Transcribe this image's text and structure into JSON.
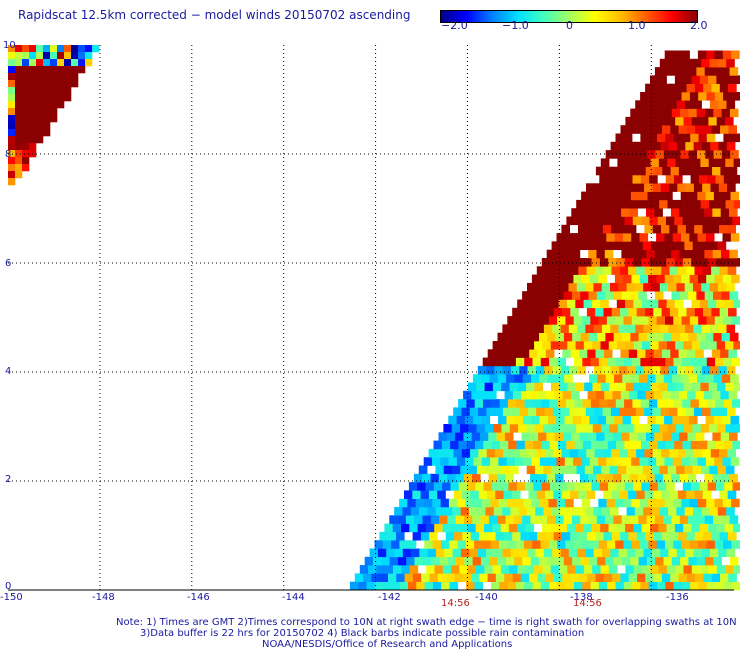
{
  "title": "Rapidscat 12.5km corrected − model winds 20150702 ascending",
  "colorbar": {
    "ticks": [
      {
        "label": "−2.0",
        "value": -2.0
      },
      {
        "label": "−1.0",
        "value": -1.0
      },
      {
        "label": "0",
        "value": 0
      },
      {
        "label": "1.0",
        "value": 1.0
      },
      {
        "label": "2.0",
        "value": 2.0
      }
    ],
    "range": [
      -2.0,
      2.0
    ],
    "colors": [
      "#00008b",
      "#0000ff",
      "#0080ff",
      "#00e0ff",
      "#40ffc0",
      "#a0ff60",
      "#ffff00",
      "#ffc000",
      "#ff6000",
      "#ff0000",
      "#8b0000"
    ]
  },
  "map": {
    "lon_range": [
      -150,
      -134.2
    ],
    "lat_range": [
      0,
      10
    ],
    "y_ticks": [
      "10",
      "8",
      "6",
      "4",
      "2",
      "0"
    ],
    "x_ticks": [
      {
        "label": "-150",
        "value": -150
      },
      {
        "label": "-148",
        "value": -148
      },
      {
        "label": "-146",
        "value": -146
      },
      {
        "label": "-144",
        "value": -144
      },
      {
        "label": "-142",
        "value": -142
      },
      {
        "label": "-140",
        "value": -140
      },
      {
        "label": "-138",
        "value": -138
      },
      {
        "label": "-136",
        "value": -136
      }
    ],
    "grid": true,
    "gridline_color": "#000000"
  },
  "swath_times": [
    {
      "label": "14:56",
      "value": -139.75
    },
    {
      "label": "14:56",
      "value": -137.72
    }
  ],
  "notes": [
    "Note: 1) Times are GMT 2)Times correspond to 10N at right swath edge − time is right swath for overlapping swaths at 10N",
    "3)Data buffer is 22 hrs for 20150702 4) Black barbs indicate possible rain contamination",
    "NOAA/NESDIS/Office of Research and Applications"
  ]
}
